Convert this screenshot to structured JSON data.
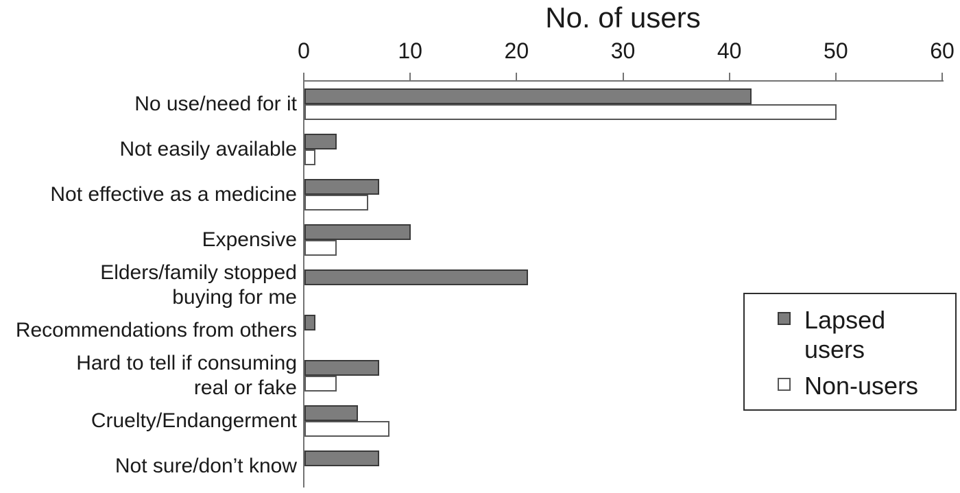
{
  "chart_data": {
    "type": "bar",
    "orientation": "horizontal",
    "title": "No. of users",
    "categories": [
      "No use/need for it",
      "Not easily available",
      "Not effective as a medicine",
      "Expensive",
      "Elders/family stopped\nbuying for me",
      "Recommendations from others",
      "Hard to tell if consuming\nreal or fake",
      "Cruelty/Endangerment",
      "Not sure/don’t know"
    ],
    "series": [
      {
        "name": "Lapsed users",
        "fill": "#7d7d7d",
        "border": "#3a3a3a",
        "values": [
          42,
          3,
          7,
          10,
          21,
          1,
          7,
          5,
          7
        ]
      },
      {
        "name": "Non-users",
        "fill": "#ffffff",
        "border": "#565656",
        "values": [
          50,
          1,
          6,
          3,
          0,
          0,
          3,
          8,
          0
        ]
      }
    ],
    "xlim": [
      0,
      60
    ],
    "xticks": [
      0,
      10,
      20,
      30,
      40,
      50,
      60
    ],
    "legend_position": "right",
    "grid": false,
    "axis_color": "#737373",
    "text_color": "#1a1a1a",
    "background_color": "#ffffff"
  }
}
